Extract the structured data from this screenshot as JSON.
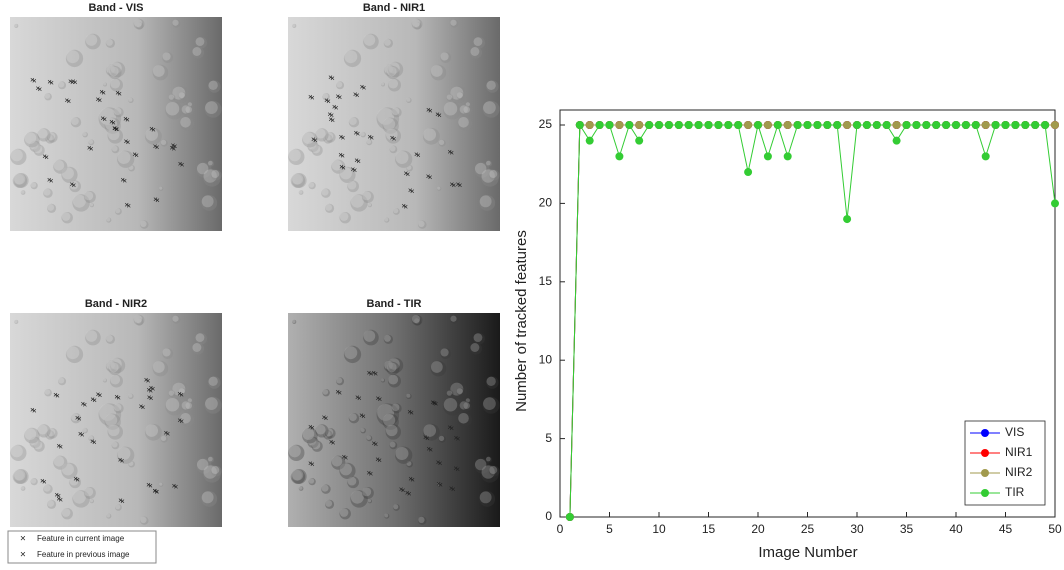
{
  "images": [
    {
      "title": "Band - VIS"
    },
    {
      "title": "Band - NIR1"
    },
    {
      "title": "Band - NIR2"
    },
    {
      "title": "Band - TIR"
    }
  ],
  "image_legend": [
    "Feature in current image",
    "Feature in previous image"
  ],
  "chart_data": {
    "type": "line",
    "x_label": "Image Number",
    "y_label": "Number of tracked features",
    "x": [
      1,
      2,
      3,
      4,
      5,
      6,
      7,
      8,
      9,
      10,
      11,
      12,
      13,
      14,
      15,
      16,
      17,
      18,
      19,
      20,
      21,
      22,
      23,
      24,
      25,
      26,
      27,
      28,
      29,
      30,
      31,
      32,
      33,
      34,
      35,
      36,
      37,
      38,
      39,
      40,
      41,
      42,
      43,
      44,
      45,
      46,
      47,
      48,
      49,
      50
    ],
    "series": [
      {
        "name": "VIS",
        "color": "#0000ff",
        "values": [
          0,
          25,
          25,
          25,
          25,
          25,
          25,
          25,
          25,
          25,
          25,
          25,
          25,
          25,
          25,
          25,
          25,
          25,
          25,
          25,
          25,
          25,
          25,
          25,
          25,
          25,
          25,
          25,
          25,
          25,
          25,
          25,
          25,
          25,
          25,
          25,
          25,
          25,
          25,
          25,
          25,
          25,
          25,
          25,
          25,
          25,
          25,
          25,
          25,
          25
        ]
      },
      {
        "name": "NIR1",
        "color": "#ff0000",
        "values": [
          0,
          25,
          25,
          25,
          25,
          25,
          25,
          25,
          25,
          25,
          25,
          25,
          25,
          25,
          25,
          25,
          25,
          25,
          25,
          25,
          25,
          25,
          25,
          25,
          25,
          25,
          25,
          25,
          25,
          25,
          25,
          25,
          25,
          25,
          25,
          25,
          25,
          25,
          25,
          25,
          25,
          25,
          25,
          25,
          25,
          25,
          25,
          25,
          25,
          25
        ]
      },
      {
        "name": "NIR2",
        "color": "#a19a4d",
        "values": [
          0,
          25,
          25,
          25,
          25,
          25,
          25,
          25,
          25,
          25,
          25,
          25,
          25,
          25,
          25,
          25,
          25,
          25,
          25,
          25,
          25,
          25,
          25,
          25,
          25,
          25,
          25,
          25,
          25,
          25,
          25,
          25,
          25,
          25,
          25,
          25,
          25,
          25,
          25,
          25,
          25,
          25,
          25,
          25,
          25,
          25,
          25,
          25,
          25,
          25
        ]
      },
      {
        "name": "TIR",
        "color": "#33cc33",
        "values": [
          0,
          25,
          24,
          25,
          25,
          23,
          25,
          24,
          25,
          25,
          25,
          25,
          25,
          25,
          25,
          25,
          25,
          25,
          22,
          25,
          23,
          25,
          23,
          25,
          25,
          25,
          25,
          25,
          19,
          25,
          25,
          25,
          25,
          24,
          25,
          25,
          25,
          25,
          25,
          25,
          25,
          25,
          23,
          25,
          25,
          25,
          25,
          25,
          25,
          20
        ]
      }
    ],
    "xlim": [
      0,
      50
    ],
    "xticks": [
      0,
      5,
      10,
      15,
      20,
      25,
      30,
      35,
      40,
      45,
      50
    ],
    "ylim": [
      0,
      25
    ],
    "yticks": [
      0,
      5,
      10,
      15,
      20,
      25
    ],
    "legend": "lower right"
  }
}
